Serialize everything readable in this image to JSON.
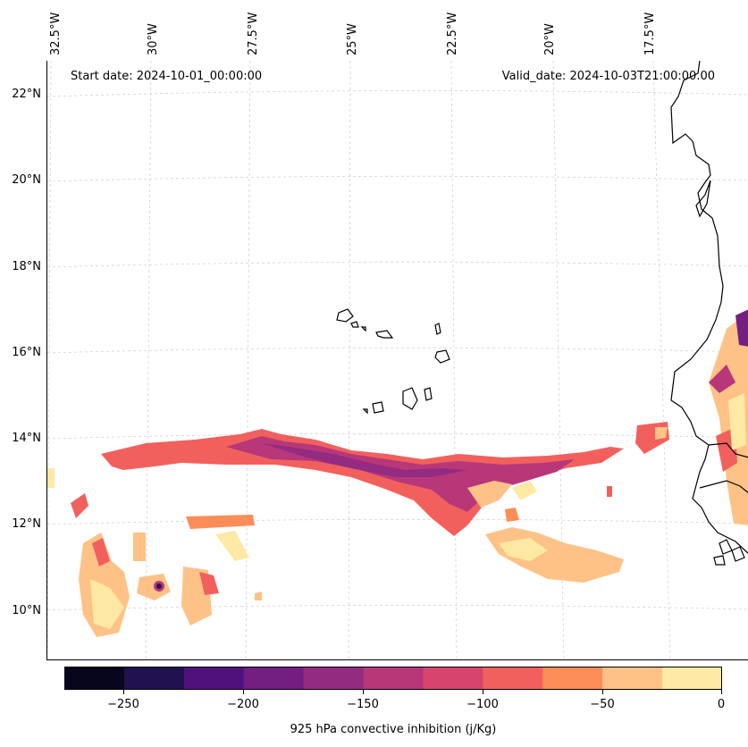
{
  "figure": {
    "start_date": "Start date: 2024-10-01_00:00:00",
    "valid_date": "Valid_date: 2024-10-03T21:00:00.00"
  },
  "longitude_labels": [
    "32.5°W",
    "30°W",
    "27.5°W",
    "25°W",
    "22.5°W",
    "20°W",
    "17.5°W"
  ],
  "latitude_labels": [
    "22°N",
    "20°N",
    "18°N",
    "16°N",
    "14°N",
    "12°N",
    "10°N"
  ],
  "colorbar": {
    "title": "925 hPa convective inhibition (j/Kg)",
    "tick_labels": [
      "−250",
      "−200",
      "−150",
      "−100",
      "−50",
      "0"
    ],
    "range": [
      -275,
      0
    ],
    "levels": [
      -275,
      -250,
      -225,
      -200,
      -175,
      -150,
      -125,
      -100,
      -75,
      -50,
      -25,
      0
    ],
    "colors": [
      "#07061c",
      "#221150",
      "#4f127b",
      "#721f81",
      "#932b80",
      "#b73779",
      "#d8456c",
      "#f1605d",
      "#fc8d59",
      "#fec287",
      "#fde9a4"
    ]
  },
  "map": {
    "coastline_color": "#000000",
    "gridline_color": "#cccccc",
    "extent_lon": [
      -32.6,
      -15.9
    ],
    "extent_lat": [
      8.9,
      22.8
    ]
  }
}
